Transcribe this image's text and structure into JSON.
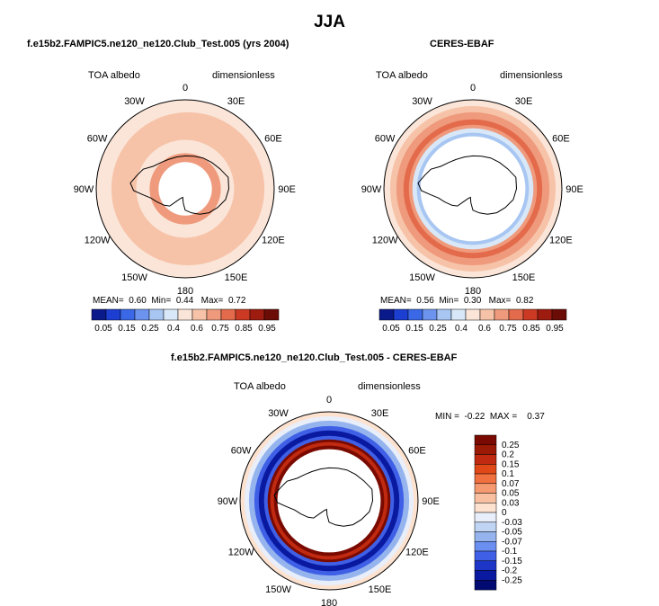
{
  "main_title": "JJA",
  "panels": [
    {
      "title": "f.e15b2.FAMPIC5.ne120_ne120.Club_Test.005 (yrs 2004)",
      "variable": "TOA albedo",
      "units": "dimensionless",
      "longitude_labels": [
        "0",
        "30E",
        "60E",
        "90E",
        "120E",
        "150E",
        "180",
        "150W",
        "120W",
        "90W",
        "60W",
        "30W"
      ],
      "stats": {
        "mean_label": "MEAN=",
        "mean": "0.60",
        "min_label": "Min=",
        "min": "0.44",
        "max_label": "Max=",
        "max": "0.72"
      },
      "colorbar_levels": [
        "0.05",
        "0.15",
        "0.25",
        "0.4",
        "0.6",
        "0.75",
        "0.85",
        "0.95"
      ]
    },
    {
      "title": "CERES-EBAF",
      "variable": "TOA albedo",
      "units": "dimensionless",
      "longitude_labels": [
        "0",
        "30E",
        "60E",
        "90E",
        "120E",
        "150E",
        "180",
        "150W",
        "120W",
        "90W",
        "60W",
        "30W"
      ],
      "stats": {
        "mean_label": "MEAN=",
        "mean": "0.56",
        "min_label": "Min=",
        "min": "0.30",
        "max_label": "Max=",
        "max": "0.82"
      },
      "colorbar_levels": [
        "0.05",
        "0.15",
        "0.25",
        "0.4",
        "0.6",
        "0.75",
        "0.85",
        "0.95"
      ]
    },
    {
      "title": "f.e15b2.FAMPIC5.ne120_ne120.Club_Test.005 - CERES-EBAF",
      "variable": "TOA albedo",
      "units": "dimensionless",
      "longitude_labels": [
        "0",
        "30E",
        "60E",
        "90E",
        "120E",
        "150E",
        "180",
        "150W",
        "120W",
        "90W",
        "60W",
        "30W"
      ],
      "stats": {
        "min_label": "MIN =",
        "min": "-0.22",
        "max_label": "MAX =",
        "max": "0.37"
      },
      "colorbar_levels": [
        "0.25",
        "0.2",
        "0.15",
        "0.1",
        "0.07",
        "0.05",
        "0.03",
        "0",
        "-0.03",
        "-0.05",
        "-0.07",
        "-0.1",
        "-0.15",
        "-0.2",
        "-0.25"
      ]
    }
  ],
  "colors": {
    "abs_scale": [
      "#0a1a8a",
      "#1c3fd1",
      "#3a68e6",
      "#6c94ee",
      "#a8c6f2",
      "#d8e8f8",
      "#fbe5d8",
      "#f6c3a8",
      "#ef9a7c",
      "#e36b4c",
      "#cc3a23",
      "#9e1b10",
      "#6b0c06"
    ],
    "diff_scale": [
      "#7a0a00",
      "#9a1a05",
      "#c02a10",
      "#e04818",
      "#f07040",
      "#f59a70",
      "#f8c0a0",
      "#fde2d0",
      "#e8eefa",
      "#c0d4f4",
      "#95b4ee",
      "#6a8ff0",
      "#3f60e6",
      "#1d36c8",
      "#0a1aa0",
      "#000a70"
    ]
  }
}
